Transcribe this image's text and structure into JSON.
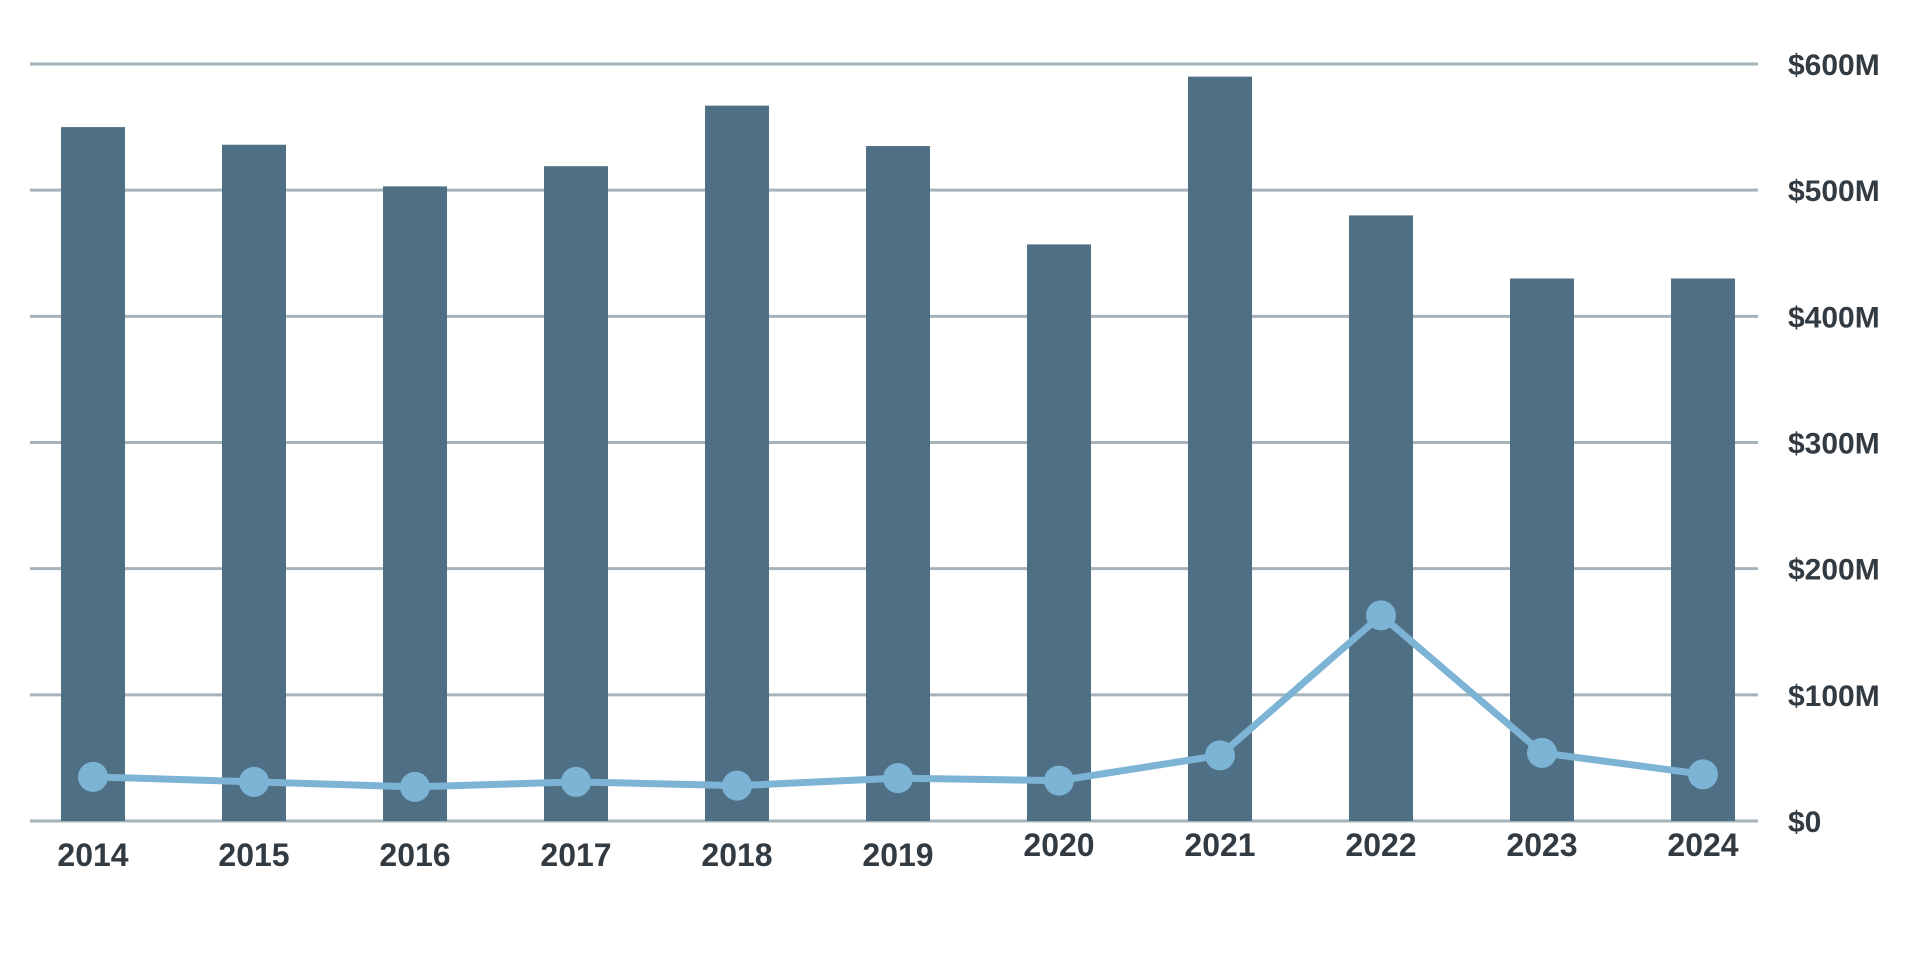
{
  "chart_data": {
    "type": "bar",
    "categories": [
      "2014",
      "2015",
      "2016",
      "2017",
      "2018",
      "2019",
      "2020",
      "2021",
      "2022",
      "2023",
      "2024"
    ],
    "series": [
      {
        "type": "bar",
        "values": [
          550,
          536,
          503,
          519,
          567,
          535,
          457,
          590,
          480,
          430,
          430
        ]
      },
      {
        "type": "line",
        "values": [
          35,
          31,
          27,
          31,
          28,
          34,
          32,
          52,
          163,
          54,
          37
        ]
      }
    ],
    "title": "",
    "xlabel": "",
    "ylabel": "",
    "y_axis_position": "right",
    "ylim": [
      0,
      600
    ],
    "y_ticks": [
      0,
      100,
      200,
      300,
      400,
      500,
      600
    ],
    "y_tick_labels": [
      "$0",
      "$100M",
      "$200M",
      "$300M",
      "$400M",
      "$500M",
      "$600M"
    ],
    "grid": true,
    "legend": "none",
    "colors": {
      "bar": "#4f6f84",
      "line": "#7db4d6",
      "grid": "#a6b3bb",
      "text": "#333b42"
    }
  }
}
